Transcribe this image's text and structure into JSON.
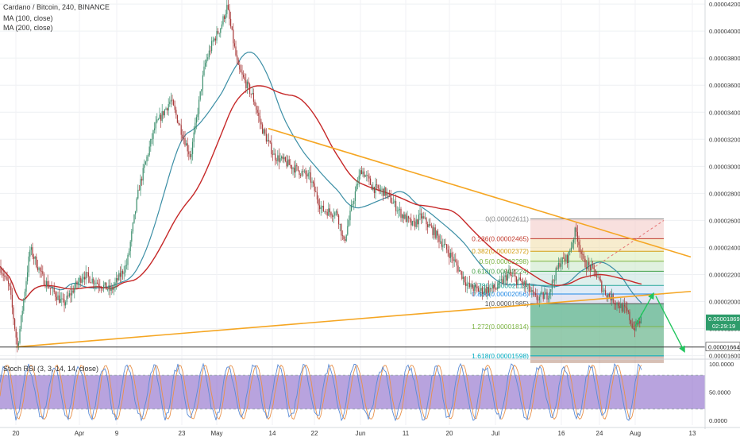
{
  "header": {
    "title": "Cardano / Bitcoin, 240, BINANCE",
    "indicators": [
      "MA (100, close)",
      "MA (200, close)"
    ]
  },
  "colors": {
    "candle_up": "#3d8f6e",
    "candle_down": "#a83a3a",
    "ma100": "#3b8ea5",
    "ma200": "#c62828",
    "trendline": "#f5a623",
    "rsi_k": "#5a8bd6",
    "rsi_d": "#e8914a",
    "rsi_band": "#7e57c2",
    "arrow": "#22c55e",
    "projection_dashed": "#e57373"
  },
  "chart_data": [
    {
      "type": "candlestick",
      "title": "Cardano / Bitcoin, 240, BINANCE",
      "x_tick_labels": [
        "20",
        "Apr",
        "9",
        "23",
        "May",
        "14",
        "22",
        "Jun",
        "11",
        "20",
        "Jul",
        "16",
        "24",
        "Aug",
        "13"
      ],
      "y_tick_labels": [
        "0.00004200",
        "0.00004000",
        "0.00003800",
        "0.00003600",
        "0.00003400",
        "0.00003200",
        "0.00003000",
        "0.00002800",
        "0.00002600",
        "0.00002400",
        "0.00002200",
        "0.00002000",
        "0.00001800",
        "0.00001600"
      ],
      "y_range": [
        1.58e-05,
        4.23e-05
      ],
      "price_labels": [
        {
          "value": "0.00001869",
          "sub": "02:29:19",
          "role": "last-price"
        },
        {
          "value": "0.00001664",
          "role": "horizontal-line"
        }
      ],
      "indicators": [
        {
          "name": "MA (100, close)"
        },
        {
          "name": "MA (200, close)"
        }
      ],
      "fibonacci": [
        {
          "label": "0(0.00002611)",
          "level": 2.611e-05
        },
        {
          "label": "0.236(0.00002465)",
          "level": 2.465e-05
        },
        {
          "label": "0.382(0.00002372)",
          "level": 2.372e-05
        },
        {
          "label": "0.5(0.00002298)",
          "level": 2.298e-05
        },
        {
          "label": "0.618(0.00002224)",
          "level": 2.224e-05
        },
        {
          "label": "0.786(0.00002119)",
          "level": 2.119e-05
        },
        {
          "label": "0.886(0.00002056)",
          "level": 2.056e-05
        },
        {
          "label": "1(0.00001985)",
          "level": 1.985e-05
        },
        {
          "label": "1.272(0.00001814)",
          "level": 1.814e-05
        },
        {
          "label": "1.618(0.00001598)",
          "level": 1.598e-05
        }
      ],
      "trendlines": [
        {
          "from": [
            3.28e-05,
            "May 14"
          ],
          "to": [
            2.32e-05,
            "Aug 13"
          ],
          "type": "descending-resistance"
        },
        {
          "from": [
            1.6e-05,
            "Mar 20"
          ],
          "to": [
            2.07e-05,
            "Aug 13"
          ],
          "type": "ascending-support"
        }
      ]
    },
    {
      "type": "line",
      "title": "Stoch RSI (3, 3, 14, 14, close)",
      "y_tick_labels": [
        "100.0000",
        "50.0000",
        "0.0000"
      ],
      "y_range": [
        0,
        100
      ],
      "upper_band": 80,
      "lower_band": 20,
      "series": [
        {
          "name": "K"
        },
        {
          "name": "D"
        }
      ]
    }
  ]
}
